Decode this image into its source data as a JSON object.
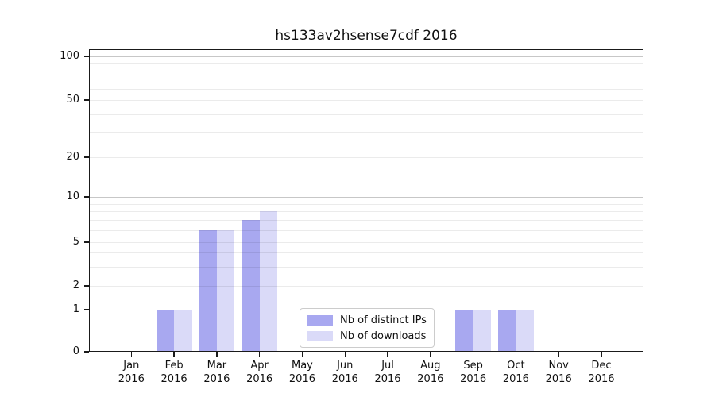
{
  "chart_data": {
    "type": "bar",
    "title": "hs133av2hsense7cdf 2016",
    "year": "2016",
    "categories": [
      "Jan",
      "Feb",
      "Mar",
      "Apr",
      "May",
      "Jun",
      "Jul",
      "Aug",
      "Sep",
      "Oct",
      "Nov",
      "Dec"
    ],
    "series": [
      {
        "name": "Nb of distinct IPs",
        "color": "#a8a8f0",
        "values": [
          0,
          1,
          6,
          7,
          0,
          0,
          0,
          0,
          1,
          1,
          0,
          0
        ]
      },
      {
        "name": "Nb of downloads",
        "color": "#dadaf8",
        "values": [
          0,
          1,
          6,
          8,
          0,
          0,
          0,
          0,
          1,
          1,
          0,
          0
        ]
      }
    ],
    "xlabel": "",
    "ylabel": "",
    "yticks": [
      0,
      1,
      2,
      5,
      10,
      20,
      50,
      100
    ],
    "major_gridlines": [
      1,
      10,
      100
    ],
    "minor_gridlines": [
      2,
      3,
      4,
      5,
      6,
      7,
      8,
      9,
      20,
      30,
      40,
      50,
      60,
      70,
      80,
      90
    ],
    "scale": "symlog",
    "ylim": [
      0,
      115
    ],
    "grid": true,
    "legend": {
      "position": "inside-bottom-center",
      "entries": [
        "Nb of distinct IPs",
        "Nb of downloads"
      ]
    }
  },
  "colors": {
    "axis": "#1a1a1a",
    "text": "#111111",
    "major_grid": "rgba(0,0,0,0.22)",
    "minor_grid": "rgba(0,0,0,0.08)",
    "background": "#ffffff",
    "legend_border": "#cccccc"
  }
}
